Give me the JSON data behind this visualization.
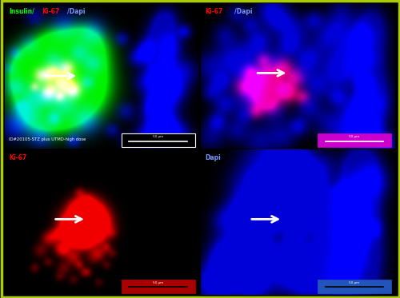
{
  "figure_size": [
    5.0,
    3.73
  ],
  "dpi": 100,
  "bg_color": "#000000",
  "outer_border_color": "#AACC00",
  "panels": [
    {
      "idx": 0,
      "label_parts": [
        {
          "text": "Insulin/",
          "color": "#00FF00"
        },
        {
          "text": "Ki-67",
          "color": "#FF0000"
        },
        {
          "text": "/Dapi",
          "color": "#6688FF"
        }
      ],
      "sublabel": "ID#20105-STZ plus UTMD-high dose",
      "scale_bar_bg": "#000000",
      "scale_bar_line": "#FFFFFF",
      "scale_bar_text_color": "#FFFFFF",
      "scale_bar_border": "#FFFFFF"
    },
    {
      "idx": 1,
      "label_parts": [
        {
          "text": "Ki-67",
          "color": "#FF0000"
        },
        {
          "text": "/Dapi",
          "color": "#6688FF"
        }
      ],
      "scale_bar_bg": "#CC00CC",
      "scale_bar_line": "#FFFFFF",
      "scale_bar_text_color": "#FFFFFF",
      "scale_bar_border": "#CC00CC"
    },
    {
      "idx": 2,
      "label_parts": [
        {
          "text": "Ki-67",
          "color": "#FF0000"
        }
      ],
      "scale_bar_bg": "#AA0000",
      "scale_bar_line": "#000000",
      "scale_bar_text_color": "#FFFFFF",
      "scale_bar_border": "#AA0000"
    },
    {
      "idx": 3,
      "label_parts": [
        {
          "text": "Dapi",
          "color": "#6688FF"
        }
      ],
      "scale_bar_bg": "#2255BB",
      "scale_bar_line": "#000000",
      "scale_bar_text_color": "#FFFFFF",
      "scale_bar_border": "#2255BB"
    }
  ]
}
